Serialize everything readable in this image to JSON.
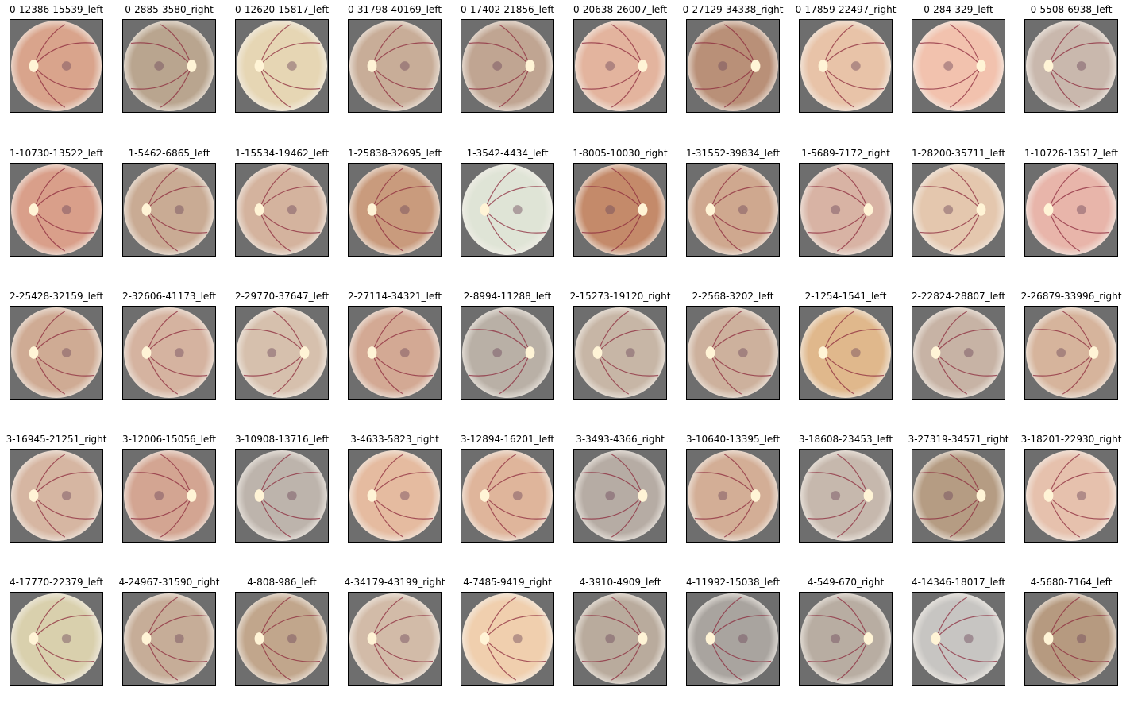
{
  "figure": {
    "rows": [
      {
        "grade": 0,
        "images": [
          {
            "title": "0-12386-15539_left",
            "side": "left",
            "tint": "#d9a48c"
          },
          {
            "title": "0-2885-3580_right",
            "side": "right",
            "tint": "#b9a58f"
          },
          {
            "title": "0-12620-15817_left",
            "side": "left",
            "tint": "#e6d6b4"
          },
          {
            "title": "0-31798-40169_left",
            "side": "left",
            "tint": "#c8ad98"
          },
          {
            "title": "0-17402-21856_left",
            "side": "right",
            "tint": "#c0a592"
          },
          {
            "title": "0-20638-26007_left",
            "side": "right",
            "tint": "#e3b49e"
          },
          {
            "title": "0-27129-34338_right",
            "side": "right",
            "tint": "#b99078"
          },
          {
            "title": "0-17859-22497_right",
            "side": "left",
            "tint": "#e8c3a8"
          },
          {
            "title": "0-284-329_left",
            "side": "right",
            "tint": "#f2c2ae"
          },
          {
            "title": "0-5508-6938_left",
            "side": "left",
            "tint": "#c9b8ad"
          }
        ]
      },
      {
        "grade": 1,
        "images": [
          {
            "title": "1-10730-13522_left",
            "side": "left",
            "tint": "#d99f8a"
          },
          {
            "title": "1-5462-6865_left",
            "side": "left",
            "tint": "#c9ab94"
          },
          {
            "title": "1-15534-19462_left",
            "side": "left",
            "tint": "#d4b39e"
          },
          {
            "title": "1-25838-32695_left",
            "side": "left",
            "tint": "#c99b7d"
          },
          {
            "title": "1-3542-4434_left",
            "side": "left",
            "tint": "#dfe4d6"
          },
          {
            "title": "1-8005-10030_right",
            "side": "right",
            "tint": "#c48a6a"
          },
          {
            "title": "1-31552-39834_left",
            "side": "left",
            "tint": "#cfa88f"
          },
          {
            "title": "1-5689-7172_right",
            "side": "right",
            "tint": "#d8b3a4"
          },
          {
            "title": "1-28200-35711_left",
            "side": "right",
            "tint": "#e4c7ae"
          },
          {
            "title": "1-10726-13517_left",
            "side": "left",
            "tint": "#e8b5aa"
          }
        ]
      },
      {
        "grade": 2,
        "images": [
          {
            "title": "2-25428-32159_left",
            "side": "left",
            "tint": "#cfab94"
          },
          {
            "title": "2-32606-41173_left",
            "side": "left",
            "tint": "#d5b3a0"
          },
          {
            "title": "2-29770-37647_left",
            "side": "right",
            "tint": "#d6c0ad"
          },
          {
            "title": "2-27114-34321_left",
            "side": "left",
            "tint": "#d3a994"
          },
          {
            "title": "2-8994-11288_left",
            "side": "right",
            "tint": "#b9b0a6"
          },
          {
            "title": "2-15273-19120_right",
            "side": "left",
            "tint": "#c7b6a6"
          },
          {
            "title": "2-2568-3202_left",
            "side": "left",
            "tint": "#cdb19d"
          },
          {
            "title": "2-1254-1541_left",
            "side": "left",
            "tint": "#e0b88c"
          },
          {
            "title": "2-22824-28807_left",
            "side": "left",
            "tint": "#c7b3a5"
          },
          {
            "title": "2-26879-33996_right",
            "side": "right",
            "tint": "#d6b49c"
          }
        ]
      },
      {
        "grade": 3,
        "images": [
          {
            "title": "3-16945-21251_right",
            "side": "left",
            "tint": "#d6b6a2"
          },
          {
            "title": "3-12006-15056_left",
            "side": "right",
            "tint": "#d3a592"
          },
          {
            "title": "3-10908-13716_left",
            "side": "left",
            "tint": "#bdb4ac"
          },
          {
            "title": "3-4633-5823_right",
            "side": "left",
            "tint": "#e5bba0"
          },
          {
            "title": "3-12894-16201_left",
            "side": "left",
            "tint": "#dfb59b"
          },
          {
            "title": "3-3493-4366_right",
            "side": "right",
            "tint": "#b6aca4"
          },
          {
            "title": "3-10640-13395_left",
            "side": "right",
            "tint": "#d3ae96"
          },
          {
            "title": "3-18608-23453_left",
            "side": "right",
            "tint": "#c6b8ad"
          },
          {
            "title": "3-27319-34571_right",
            "side": "right",
            "tint": "#b59c83"
          },
          {
            "title": "3-18201-22930_right",
            "side": "left",
            "tint": "#e6c1ad"
          }
        ]
      },
      {
        "grade": 4,
        "images": [
          {
            "title": "4-17770-22379_left",
            "side": "left",
            "tint": "#d9d0ad"
          },
          {
            "title": "4-24967-31590_right",
            "side": "left",
            "tint": "#c6ad98"
          },
          {
            "title": "4-808-986_left",
            "side": "left",
            "tint": "#c1a68c"
          },
          {
            "title": "4-34179-43199_right",
            "side": "left",
            "tint": "#d2bba8"
          },
          {
            "title": "4-7485-9419_right",
            "side": "left",
            "tint": "#f0cfae"
          },
          {
            "title": "4-3910-4909_left",
            "side": "right",
            "tint": "#b9ab9d"
          },
          {
            "title": "4-11992-15038_left",
            "side": "left",
            "tint": "#a9a49f"
          },
          {
            "title": "4-549-670_right",
            "side": "right",
            "tint": "#b8ada2"
          },
          {
            "title": "4-14346-18017_left",
            "side": "left",
            "tint": "#c7c5c2"
          },
          {
            "title": "4-5680-7164_left",
            "side": "left",
            "tint": "#b69a80"
          }
        ]
      }
    ]
  },
  "colors": {
    "background": "#ffffff",
    "frame": "#000000",
    "outside_fundus": "#6e6e6e",
    "disc": "#fff4d6",
    "vessel": "#8c2a3c",
    "macula": "#6f4a5a"
  }
}
